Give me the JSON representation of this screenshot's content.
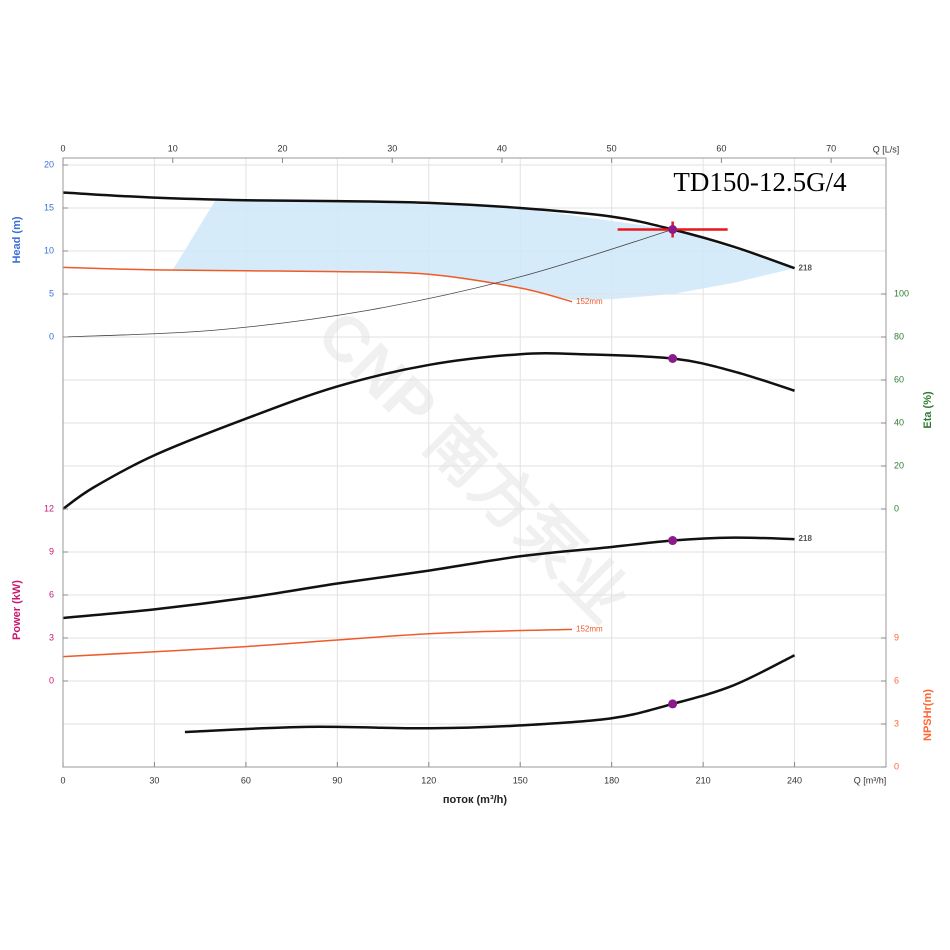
{
  "chart_data": {
    "type": "line",
    "title": "TD150-12.5G/4",
    "watermark": "CNP 南方泵业",
    "xlabel": "поток (m³/h)",
    "xunit": "Q [m³/h]",
    "xlim": [
      0,
      270
    ],
    "xticks": [
      0,
      30,
      60,
      90,
      120,
      150,
      180,
      210,
      240
    ],
    "x2unit": "Q [L/s]",
    "x2lim": [
      0,
      75
    ],
    "x2ticks": [
      0,
      10,
      20,
      30,
      40,
      50,
      60,
      70
    ],
    "grid": true,
    "panels": [
      {
        "ylabel": "Head (m)",
        "side": "left",
        "color": "#3a6fd8",
        "ylim": [
          0,
          20
        ],
        "yticks": [
          0,
          5,
          10,
          15,
          20
        ],
        "area": {
          "color": "#cfe8f8",
          "x": [
            36,
            50,
            90,
            150,
            200,
            240,
            220,
            200,
            180,
            167,
            150,
            120,
            90,
            60,
            36
          ],
          "y": [
            7.8,
            15.9,
            15.8,
            15.0,
            12.5,
            8.0,
            6.3,
            5.0,
            4.4,
            4.3,
            5.7,
            7.3,
            7.6,
            7.7,
            7.8
          ]
        },
        "series": [
          {
            "name": "218",
            "color": "#111111",
            "width": 2.5,
            "x": [
              0,
              30,
              60,
              90,
              120,
              150,
              180,
              200,
              220,
              240
            ],
            "values": [
              16.8,
              16.2,
              15.9,
              15.8,
              15.6,
              15.0,
              14.0,
              12.5,
              10.5,
              8.0
            ]
          },
          {
            "name": "152mm",
            "color": "#f05a28",
            "width": 1.5,
            "x": [
              0,
              30,
              60,
              90,
              120,
              150,
              167
            ],
            "values": [
              8.1,
              7.8,
              7.7,
              7.6,
              7.3,
              5.7,
              4.1
            ]
          },
          {
            "color": "#444444",
            "width": 0.8,
            "x": [
              0,
              50,
              100,
              150,
              200
            ],
            "values": [
              0,
              0.8,
              3.1,
              7.0,
              12.5
            ]
          }
        ],
        "points": {
          "color": "#8b1a8b",
          "x": [
            200
          ],
          "values": [
            12.5
          ]
        }
      },
      {
        "ylabel": "Eta (%)",
        "side": "right",
        "color": "#2e7d32",
        "ylim": [
          0,
          100
        ],
        "yticks": [
          0,
          20,
          40,
          60,
          80,
          100
        ],
        "series": [
          {
            "color": "#111111",
            "width": 2.5,
            "x": [
              0,
              10,
              30,
              60,
              90,
              120,
              150,
              170,
              200,
              220,
              240
            ],
            "values": [
              0,
              10,
              25,
              42,
              57,
              67,
              72,
              72,
              70,
              64,
              55
            ]
          }
        ],
        "points": {
          "color": "#8b1a8b",
          "x": [
            200
          ],
          "values": [
            70
          ]
        }
      },
      {
        "ylabel": "Power (kW)",
        "side": "left",
        "color": "#c8186e",
        "ylim": [
          0,
          12
        ],
        "yticks": [
          0,
          3,
          6,
          9,
          12
        ],
        "series": [
          {
            "name": "218",
            "color": "#111111",
            "width": 2.5,
            "x": [
              0,
              30,
              60,
              90,
              120,
              150,
              180,
              200,
              220,
              240
            ],
            "values": [
              4.4,
              5.0,
              5.8,
              6.8,
              7.7,
              8.7,
              9.35,
              9.8,
              10.0,
              9.9
            ]
          },
          {
            "name": "152mm",
            "color": "#f05a28",
            "width": 1.5,
            "x": [
              0,
              60,
              120,
              167
            ],
            "values": [
              1.7,
              2.4,
              3.3,
              3.6
            ]
          }
        ],
        "points": {
          "color": "#8b1a8b",
          "x": [
            200
          ],
          "values": [
            9.8
          ]
        }
      },
      {
        "ylabel": "NPSHr(m)",
        "side": "right",
        "color": "#ff6633",
        "ylim": [
          0,
          9
        ],
        "yticks": [
          0,
          3,
          6,
          9
        ],
        "series": [
          {
            "color": "#111111",
            "width": 2.5,
            "x": [
              40,
              80,
              120,
              150,
              180,
              200,
              220,
              240
            ],
            "values": [
              2.44,
              2.8,
              2.7,
              2.9,
              3.4,
              4.4,
              5.7,
              7.8
            ]
          }
        ],
        "points": {
          "color": "#8b1a8b",
          "x": [
            200
          ],
          "values": [
            4.4
          ]
        }
      }
    ]
  }
}
